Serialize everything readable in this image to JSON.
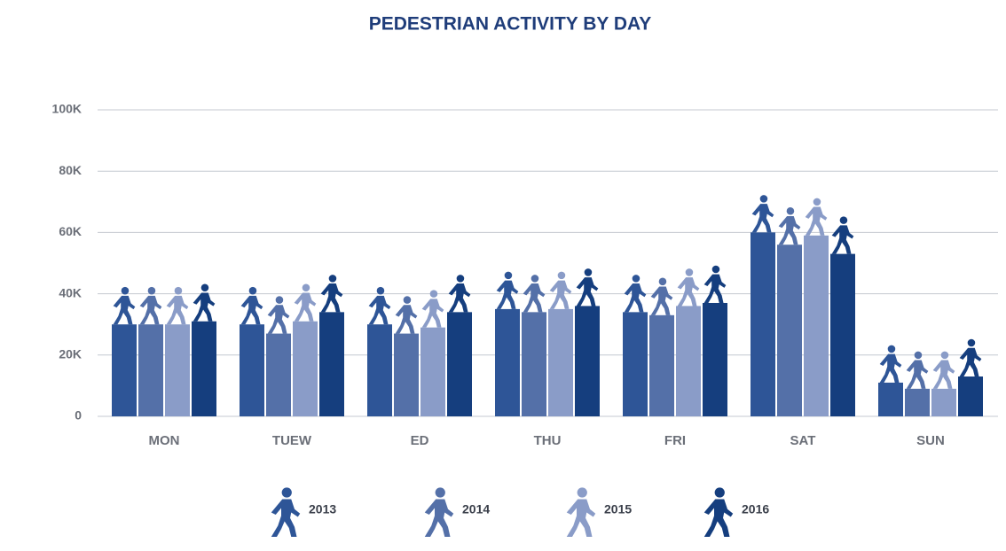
{
  "chart_data": {
    "type": "bar",
    "title": "PEDESTRIAN ACTIVITY BY DAY",
    "categories": [
      "MON",
      "TUEW",
      "ED",
      "THU",
      "FRI",
      "SAT",
      "SUN"
    ],
    "series": [
      {
        "name": "2013",
        "color": "#2e5597",
        "values": [
          30000,
          30000,
          30000,
          35000,
          34000,
          60000,
          11000
        ]
      },
      {
        "name": "2014",
        "color": "#5470a8",
        "values": [
          30000,
          27000,
          27000,
          34000,
          33000,
          56000,
          9000
        ]
      },
      {
        "name": "2015",
        "color": "#8a9cc8",
        "values": [
          30000,
          31000,
          29000,
          35000,
          36000,
          59000,
          9000
        ]
      },
      {
        "name": "2016",
        "color": "#153e7e",
        "values": [
          31000,
          34000,
          34000,
          36000,
          37000,
          53000,
          13000
        ]
      }
    ],
    "ylim": [
      0,
      100000
    ],
    "yticks": [
      0,
      {
        "value": 20000,
        "label": "20K"
      },
      {
        "value": 40000,
        "label": "40K"
      },
      {
        "value": 60000,
        "label": "60K"
      },
      {
        "value": 80000,
        "label": "80K"
      },
      {
        "value": 100000,
        "label": "100K"
      }
    ],
    "grid": true
  }
}
